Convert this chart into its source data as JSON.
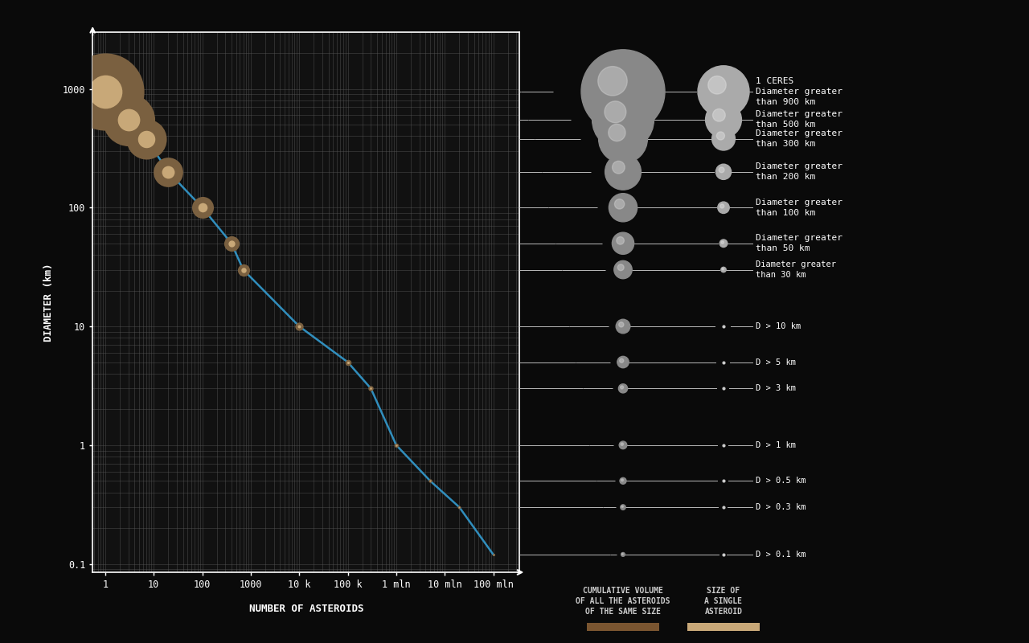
{
  "background_color": "#0a0a0a",
  "xlabel": "NUMBER OF ASTEROIDS",
  "ylabel": "DIAMETER (km)",
  "x_tick_labels": [
    "1",
    "10",
    "100",
    "1000",
    "10 k",
    "100 k",
    "1 mln",
    "10 mln",
    "100 mln"
  ],
  "y_tick_labels": [
    "0.1",
    "1",
    "10",
    "100",
    "1000"
  ],
  "data_points": [
    {
      "n": 1,
      "d": 950,
      "outer_s": 4800,
      "inner_s": 900
    },
    {
      "n": 3,
      "d": 550,
      "outer_s": 2200,
      "inner_s": 400
    },
    {
      "n": 7,
      "d": 380,
      "outer_s": 1300,
      "inner_s": 240
    },
    {
      "n": 20,
      "d": 200,
      "outer_s": 700,
      "inner_s": 130
    },
    {
      "n": 100,
      "d": 100,
      "outer_s": 380,
      "inner_s": 70
    },
    {
      "n": 400,
      "d": 50,
      "outer_s": 190,
      "inner_s": 36
    },
    {
      "n": 700,
      "d": 30,
      "outer_s": 120,
      "inner_s": 22
    },
    {
      "n": 10000,
      "d": 10,
      "outer_s": 55,
      "inner_s": 8
    },
    {
      "n": 100000,
      "d": 5,
      "outer_s": 30,
      "inner_s": 5
    },
    {
      "n": 300000,
      "d": 3,
      "outer_s": 22,
      "inner_s": 4
    },
    {
      "n": 1000000,
      "d": 1,
      "outer_s": 15,
      "inner_s": 3
    },
    {
      "n": 5000000,
      "d": 0.5,
      "outer_s": 10,
      "inner_s": 2
    },
    {
      "n": 20000000,
      "d": 0.3,
      "outer_s": 8,
      "inner_s": 2
    },
    {
      "n": 100000000.0,
      "d": 0.12,
      "outer_s": 5,
      "inner_s": 1
    }
  ],
  "trend_line_color": "#3399cc",
  "outer_circle_color": "#7a6040",
  "inner_circle_color": "#c8a878",
  "text_color": "#ffffff",
  "line_color": "#aaaaaa",
  "right_labels": [
    {
      "d": 950,
      "text": "1 CERES\nDiameter greater\nthan 900 km"
    },
    {
      "d": 550,
      "text": "Diameter greater\nthan 500 km"
    },
    {
      "d": 380,
      "text": "Diameter greater\nthan 300 km"
    },
    {
      "d": 200,
      "text": "Diameter greater\nthan 200 km"
    },
    {
      "d": 100,
      "text": "Diameter greater\nthan 100 km"
    },
    {
      "d": 50,
      "text": "Diameter greater\nthan 50 km"
    },
    {
      "d": 30,
      "text": "Diameter greater\nthan 30 km"
    },
    {
      "d": 10,
      "text": "D > 10 km"
    },
    {
      "d": 5,
      "text": "D > 5 km"
    },
    {
      "d": 3,
      "text": "D > 3 km"
    },
    {
      "d": 1,
      "text": "D > 1 km"
    },
    {
      "d": 0.5,
      "text": "D > 0.5 km"
    },
    {
      "d": 0.3,
      "text": "D > 0.3 km"
    },
    {
      "d": 0.12,
      "text": "D > 0.1 km"
    }
  ],
  "legend_color1": "#7a5530",
  "legend_color2": "#c8a878",
  "legend_label1": "CUMULATIVE VOLUME\nOF ALL THE ASTEROIDS\nOF THE SAME SIZE",
  "legend_label2": "SIZE OF\nA SINGLE\nASTEROID",
  "img1_sizes": [
    0.065,
    0.048,
    0.038,
    0.028,
    0.022,
    0.017,
    0.014,
    0.011,
    0.009,
    0.007,
    0.006,
    0.005,
    0.004,
    0.003
  ],
  "img2_sizes": [
    0.04,
    0.028,
    0.018,
    0.012,
    0.009,
    0.006,
    0.004,
    0.011,
    0.01,
    0.009,
    0.008,
    0.007,
    0.006,
    0.005
  ]
}
